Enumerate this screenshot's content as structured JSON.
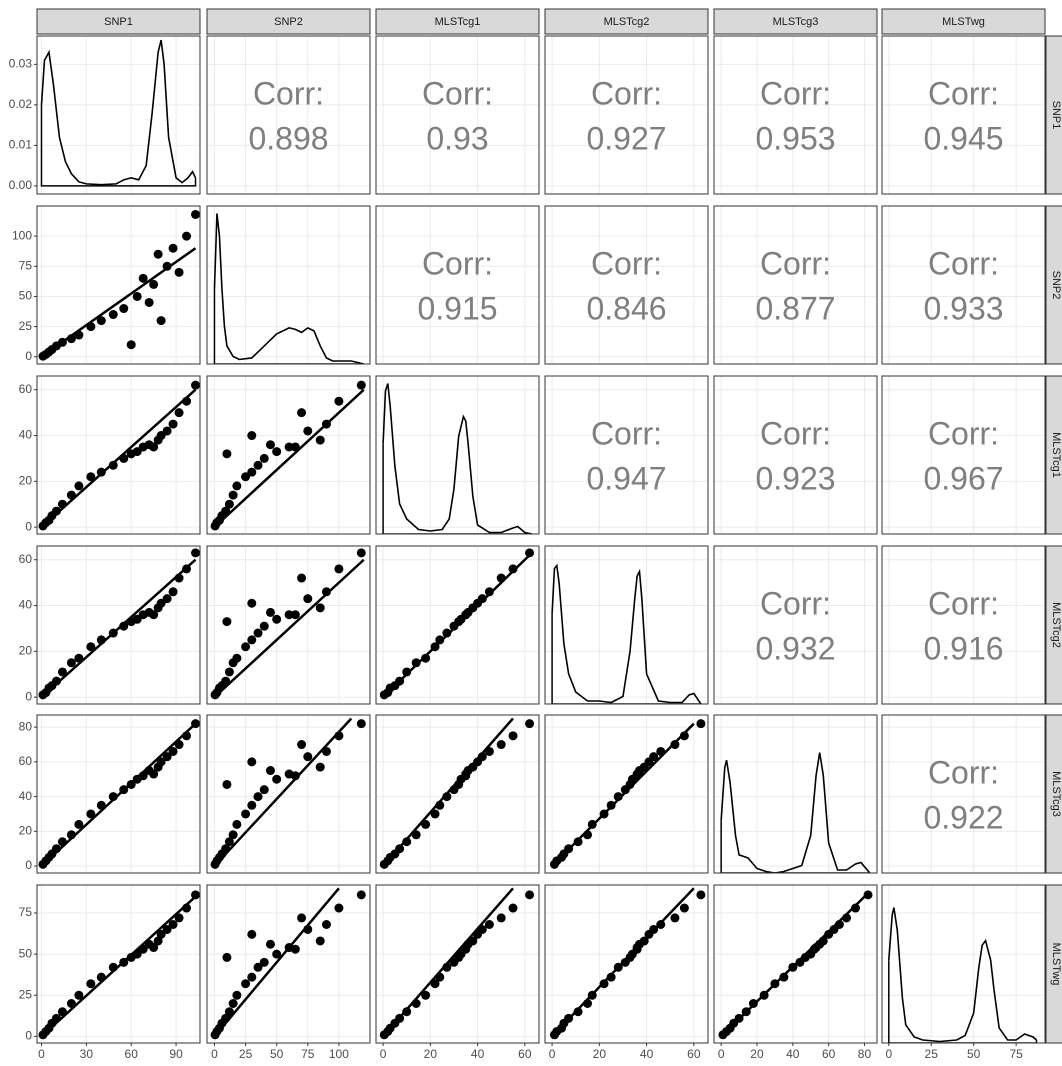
{
  "chart_data": {
    "type": "scatter-matrix",
    "corr_label": "Corr:",
    "variables": [
      {
        "name": "SNP1",
        "lim": [
          -3,
          106
        ],
        "ticks": [
          0,
          30,
          60,
          90
        ],
        "values": [
          1,
          3,
          5,
          7,
          10,
          14,
          20,
          25,
          33,
          40,
          48,
          55,
          60,
          64,
          68,
          72,
          75,
          78,
          80,
          84,
          88,
          92,
          97,
          103
        ],
        "density": {
          "x": [
            0,
            2,
            5,
            8,
            12,
            16,
            20,
            25,
            30,
            40,
            50,
            55,
            60,
            65,
            70,
            74,
            78,
            80,
            82,
            85,
            90,
            94,
            98,
            101,
            103
          ],
          "y": [
            0.02,
            0.031,
            0.033,
            0.025,
            0.012,
            0.006,
            0.003,
            0.001,
            0.0005,
            0.0003,
            0.0005,
            0.0015,
            0.002,
            0.0015,
            0.005,
            0.018,
            0.033,
            0.036,
            0.03,
            0.012,
            0.002,
            0.0008,
            0.002,
            0.0035,
            0.002
          ],
          "ylim": [
            -0.002,
            0.037
          ]
        }
      },
      {
        "name": "SNP2",
        "lim": [
          -6,
          125
        ],
        "ticks": [
          0,
          25,
          50,
          75,
          100
        ],
        "values": [
          0.5,
          2,
          4,
          6,
          9,
          12,
          15,
          18,
          25,
          30,
          35,
          40,
          10,
          50,
          65,
          45,
          60,
          85,
          30,
          75,
          90,
          70,
          100,
          118
        ],
        "density": {
          "x": [
            0,
            2,
            4,
            6,
            8,
            10,
            15,
            20,
            30,
            40,
            50,
            60,
            65,
            70,
            75,
            80,
            85,
            90,
            95,
            100,
            110,
            120
          ],
          "y": [
            0.5,
            1,
            0.85,
            0.5,
            0.25,
            0.12,
            0.05,
            0.03,
            0.04,
            0.12,
            0.2,
            0.24,
            0.23,
            0.21,
            0.24,
            0.22,
            0.12,
            0.04,
            0.02,
            0.02,
            0.02,
            0
          ],
          "ylim": [
            0,
            1.05
          ]
        }
      },
      {
        "name": "MLSTcg1",
        "lim": [
          -3,
          66
        ],
        "ticks": [
          0,
          20,
          40,
          60
        ],
        "values": [
          0.5,
          2,
          3,
          5,
          7,
          10,
          14,
          18,
          22,
          24,
          27,
          30,
          32,
          33,
          35,
          36,
          35,
          38,
          40,
          42,
          45,
          50,
          55,
          62
        ],
        "density": {
          "x": [
            0,
            1,
            2,
            3,
            5,
            7,
            10,
            15,
            20,
            25,
            28,
            30,
            32,
            34,
            35,
            36,
            38,
            40,
            45,
            50,
            55,
            57,
            60,
            63
          ],
          "y": [
            0.6,
            0.95,
            1,
            0.85,
            0.45,
            0.2,
            0.1,
            0.03,
            0.02,
            0.03,
            0.1,
            0.3,
            0.65,
            0.78,
            0.75,
            0.6,
            0.25,
            0.06,
            0.01,
            0.01,
            0.04,
            0.05,
            0.01,
            0
          ],
          "ylim": [
            0,
            1.05
          ]
        }
      },
      {
        "name": "MLSTcg2",
        "lim": [
          -3,
          66
        ],
        "ticks": [
          0,
          20,
          40,
          60
        ],
        "values": [
          1,
          2,
          4,
          5,
          7,
          11,
          15,
          17,
          22,
          25,
          28,
          31,
          33,
          34,
          36,
          37,
          36,
          39,
          41,
          43,
          46,
          52,
          56,
          63
        ],
        "density": {
          "x": [
            0,
            1,
            2,
            3,
            5,
            7,
            10,
            15,
            20,
            25,
            30,
            33,
            35,
            36,
            37,
            38,
            40,
            45,
            50,
            55,
            58,
            60,
            63
          ],
          "y": [
            0.6,
            0.9,
            0.92,
            0.8,
            0.4,
            0.2,
            0.08,
            0.02,
            0.02,
            0.01,
            0.05,
            0.35,
            0.7,
            0.85,
            0.88,
            0.7,
            0.2,
            0.02,
            0.01,
            0.01,
            0.06,
            0.07,
            0
          ],
          "ylim": [
            0,
            1.05
          ]
        }
      },
      {
        "name": "MLSTcg3",
        "lim": [
          -4,
          87
        ],
        "ticks": [
          0,
          20,
          40,
          60,
          80
        ],
        "values": [
          1,
          3,
          5,
          7,
          10,
          14,
          18,
          24,
          30,
          35,
          40,
          44,
          47,
          50,
          52,
          55,
          53,
          57,
          60,
          63,
          66,
          70,
          75,
          82
        ],
        "density": {
          "x": [
            0,
            2,
            3,
            5,
            8,
            10,
            15,
            20,
            25,
            30,
            35,
            40,
            45,
            50,
            53,
            55,
            57,
            60,
            65,
            70,
            75,
            78,
            83
          ],
          "y": [
            0.35,
            0.7,
            0.75,
            0.6,
            0.25,
            0.12,
            0.1,
            0.03,
            0.01,
            0,
            0.01,
            0.03,
            0.05,
            0.25,
            0.65,
            0.8,
            0.65,
            0.2,
            0.02,
            0.02,
            0.06,
            0.07,
            0
          ],
          "ylim": [
            0,
            1.05
          ]
        }
      },
      {
        "name": "MLSTwg",
        "lim": [
          -4,
          92
        ],
        "ticks": [
          0,
          25,
          50,
          75
        ],
        "values": [
          1,
          3,
          5,
          8,
          11,
          15,
          20,
          25,
          32,
          36,
          42,
          45,
          48,
          50,
          53,
          56,
          54,
          58,
          62,
          65,
          68,
          72,
          78,
          86
        ],
        "density": {
          "x": [
            0,
            2,
            3,
            5,
            8,
            10,
            15,
            20,
            30,
            40,
            45,
            50,
            53,
            55,
            57,
            60,
            62,
            65,
            70,
            75,
            80,
            85,
            87
          ],
          "y": [
            0.55,
            0.85,
            0.9,
            0.75,
            0.3,
            0.12,
            0.04,
            0.02,
            0.01,
            0.02,
            0.05,
            0.2,
            0.5,
            0.65,
            0.68,
            0.55,
            0.35,
            0.1,
            0.02,
            0.02,
            0.06,
            0.04,
            0.02
          ],
          "ylim": [
            0,
            1.05
          ]
        }
      }
    ],
    "density_yticks": [
      {
        "value": 0,
        "label": "0.00"
      },
      0.01,
      0.02,
      0.03
    ],
    "corr": [
      [
        null,
        0.898,
        0.93,
        0.927,
        0.953,
        0.945
      ],
      [
        null,
        null,
        0.915,
        0.846,
        0.877,
        0.933
      ],
      [
        null,
        null,
        null,
        0.947,
        0.923,
        0.967
      ],
      [
        null,
        null,
        null,
        null,
        0.932,
        0.916
      ],
      [
        null,
        null,
        null,
        null,
        null,
        0.922
      ]
    ],
    "fits": [
      {
        "x": [
          0,
          103
        ],
        "y": [
          0,
          90
        ]
      },
      {
        "x": [
          0,
          103
        ],
        "y": [
          0,
          60
        ]
      },
      {
        "x": [
          0,
          120
        ],
        "y": [
          0,
          60
        ]
      },
      {
        "x": [
          0,
          103
        ],
        "y": [
          0,
          60
        ]
      },
      {
        "x": [
          0,
          120
        ],
        "y": [
          0,
          60
        ]
      },
      {
        "x": [
          0,
          63
        ],
        "y": [
          0,
          63
        ]
      },
      {
        "x": [
          0,
          103
        ],
        "y": [
          0,
          82
        ]
      },
      {
        "x": [
          0,
          110
        ],
        "y": [
          0,
          85
        ]
      },
      {
        "x": [
          0,
          55
        ],
        "y": [
          0,
          85
        ]
      },
      {
        "x": [
          0,
          60
        ],
        "y": [
          0,
          82
        ]
      },
      {
        "x": [
          0,
          103
        ],
        "y": [
          0,
          85
        ]
      },
      {
        "x": [
          0,
          100
        ],
        "y": [
          0,
          90
        ]
      },
      {
        "x": [
          0,
          55
        ],
        "y": [
          0,
          90
        ]
      },
      {
        "x": [
          0,
          60
        ],
        "y": [
          0,
          90
        ]
      },
      {
        "x": [
          0,
          82
        ],
        "y": [
          0,
          87
        ]
      }
    ]
  }
}
